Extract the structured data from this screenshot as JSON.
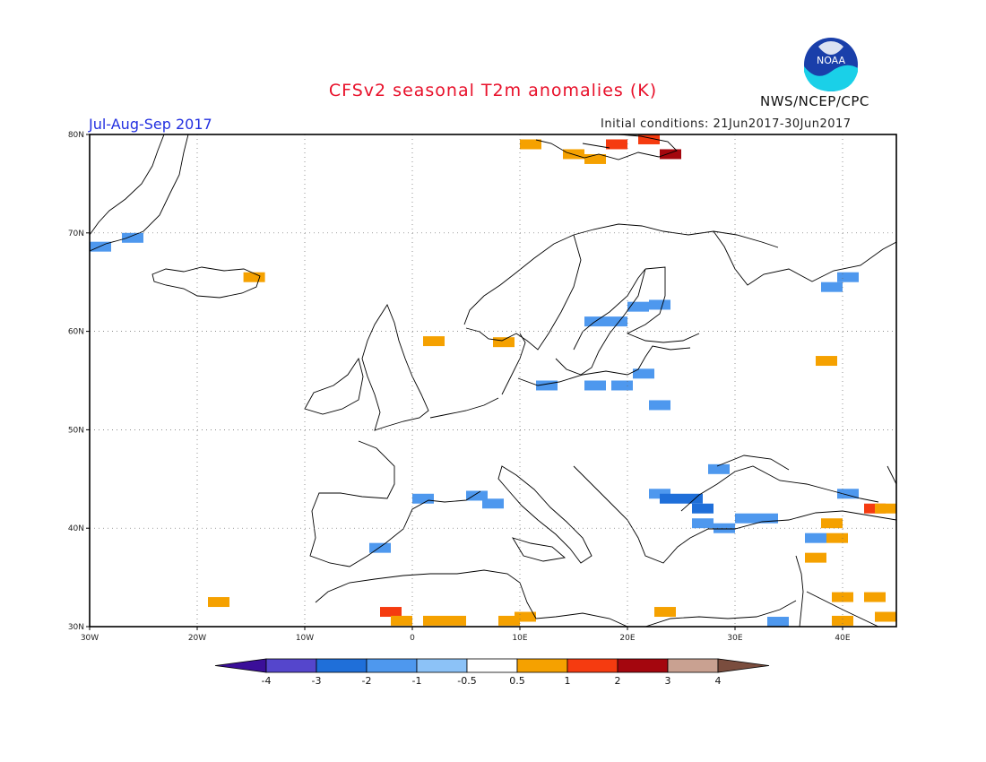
{
  "header": {
    "title": "CFSv2 seasonal T2m anomalies (K)",
    "period": "Jul-Aug-Sep 2017",
    "initial_conditions": "Initial conditions: 21Jun2017-30Jun2017",
    "agency": "NWS/NCEP/CPC",
    "logo_text": "NOAA"
  },
  "map": {
    "lon_range": [
      -30,
      45
    ],
    "lat_range": [
      30,
      80
    ],
    "lon_ticks": [
      "30W",
      "20W",
      "10W",
      "0",
      "10E",
      "20E",
      "30E",
      "40E"
    ],
    "lat_ticks": [
      "80N",
      "70N",
      "60N",
      "50N",
      "40N",
      "30N"
    ],
    "grid": "dotted",
    "anomaly_cells": [
      {
        "lon": -29,
        "lat": 68.6,
        "v": -1
      },
      {
        "lon": -26,
        "lat": 69.5,
        "v": -1
      },
      {
        "lon": -14.7,
        "lat": 65.5,
        "v": 1
      },
      {
        "lon": 2,
        "lat": 59,
        "v": 1
      },
      {
        "lon": 8.5,
        "lat": 58.9,
        "v": 1
      },
      {
        "lon": 17,
        "lat": 61,
        "v": -1
      },
      {
        "lon": 19,
        "lat": 61,
        "v": -1
      },
      {
        "lon": 21,
        "lat": 62.5,
        "v": -1
      },
      {
        "lon": 23,
        "lat": 62.7,
        "v": -1
      },
      {
        "lon": 17,
        "lat": 54.5,
        "v": -1
      },
      {
        "lon": 19.5,
        "lat": 54.5,
        "v": -1
      },
      {
        "lon": 21.5,
        "lat": 55.7,
        "v": -1
      },
      {
        "lon": 23,
        "lat": 52.5,
        "v": -1
      },
      {
        "lon": 12.5,
        "lat": 54.5,
        "v": -1
      },
      {
        "lon": 6,
        "lat": 43.3,
        "v": -1
      },
      {
        "lon": 1,
        "lat": 43,
        "v": -1
      },
      {
        "lon": 7.5,
        "lat": 42.5,
        "v": -1
      },
      {
        "lon": -3,
        "lat": 38,
        "v": -1
      },
      {
        "lon": 23,
        "lat": 43.5,
        "v": -1
      },
      {
        "lon": 24,
        "lat": 43,
        "v": -2
      },
      {
        "lon": 26,
        "lat": 43,
        "v": -2
      },
      {
        "lon": 27,
        "lat": 42,
        "v": -2
      },
      {
        "lon": 27,
        "lat": 40.5,
        "v": -1
      },
      {
        "lon": 29,
        "lat": 40,
        "v": -1
      },
      {
        "lon": 31,
        "lat": 41,
        "v": -1
      },
      {
        "lon": 33,
        "lat": 41,
        "v": -1
      },
      {
        "lon": 28.5,
        "lat": 46,
        "v": -1
      },
      {
        "lon": 40.5,
        "lat": 43.5,
        "v": -1
      },
      {
        "lon": 39,
        "lat": 40.5,
        "v": 1
      },
      {
        "lon": 43,
        "lat": 42,
        "v": 2
      },
      {
        "lon": 44,
        "lat": 42,
        "v": 1
      },
      {
        "lon": 37.5,
        "lat": 39,
        "v": -1
      },
      {
        "lon": 39.5,
        "lat": 39,
        "v": 1
      },
      {
        "lon": 37.5,
        "lat": 37,
        "v": 1
      },
      {
        "lon": 38.5,
        "lat": 57,
        "v": 1
      },
      {
        "lon": 39,
        "lat": 64.5,
        "v": -1
      },
      {
        "lon": 40.5,
        "lat": 65.5,
        "v": -1
      },
      {
        "lon": 15,
        "lat": 78,
        "v": 1
      },
      {
        "lon": 19,
        "lat": 79,
        "v": 2
      },
      {
        "lon": 22,
        "lat": 79.5,
        "v": 2
      },
      {
        "lon": 24,
        "lat": 78,
        "v": 3
      },
      {
        "lon": 11,
        "lat": 79,
        "v": 1
      },
      {
        "lon": 17,
        "lat": 77.5,
        "v": 1
      },
      {
        "lon": 34,
        "lat": 30.5,
        "v": -1
      },
      {
        "lon": -18,
        "lat": 32.5,
        "v": 1
      },
      {
        "lon": -2,
        "lat": 31.5,
        "v": 2
      },
      {
        "lon": -1,
        "lat": 30.6,
        "v": 1
      },
      {
        "lon": 2,
        "lat": 30.6,
        "v": 1
      },
      {
        "lon": 4,
        "lat": 30.6,
        "v": 1
      },
      {
        "lon": 9,
        "lat": 30.6,
        "v": 1
      },
      {
        "lon": 10.5,
        "lat": 31,
        "v": 1
      },
      {
        "lon": 23.5,
        "lat": 31.5,
        "v": 1
      },
      {
        "lon": 40,
        "lat": 33,
        "v": 1
      },
      {
        "lon": 43,
        "lat": 33,
        "v": 1
      },
      {
        "lon": 44,
        "lat": 31,
        "v": 1
      },
      {
        "lon": 40,
        "lat": 30.6,
        "v": 1
      }
    ]
  },
  "colorbar": {
    "labels": [
      "-4",
      "-3",
      "-2",
      "-1",
      "-0.5",
      "0.5",
      "1",
      "2",
      "3",
      "4"
    ],
    "colors": [
      "#3b0f99",
      "#5546cc",
      "#1f6fd9",
      "#4e98ee",
      "#8cc2f7",
      "#ffffff",
      "#f5a100",
      "#f53b10",
      "#a4060e",
      "#c9a191",
      "#7a4d3e"
    ]
  }
}
